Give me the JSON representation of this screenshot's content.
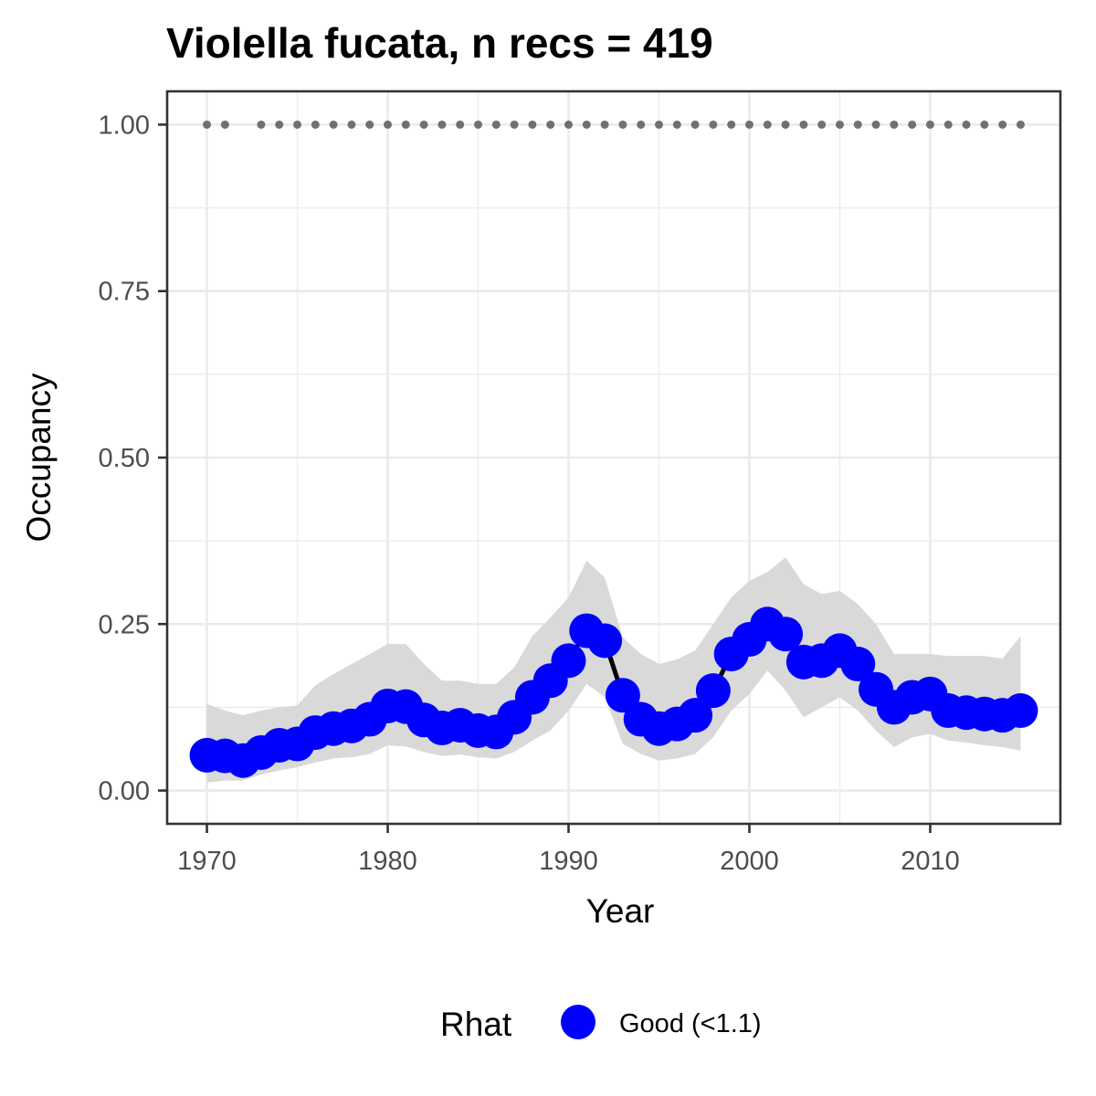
{
  "chart_data": {
    "type": "line",
    "title": "Violella fucata, n recs = 419",
    "xlabel": "Year",
    "ylabel": "Occupancy",
    "xlim": [
      1967.8,
      2017.2
    ],
    "ylim": [
      -0.05,
      1.05
    ],
    "x_ticks": [
      1970,
      1980,
      1990,
      2000,
      2010
    ],
    "x_tick_labels": [
      "1970",
      "1980",
      "1990",
      "2000",
      "2010"
    ],
    "y_ticks": [
      0,
      0.25,
      0.5,
      0.75,
      1.0
    ],
    "y_tick_labels": [
      "0.00",
      "0.25",
      "0.50",
      "0.75",
      "1.00"
    ],
    "grid": true,
    "colors": {
      "points": "#0000ff",
      "line": "#000000",
      "ribbon": "#d9d9d9",
      "record_dots": "#707070",
      "grid": "#ebebeb",
      "panel_border": "#333333"
    },
    "years": [
      1970,
      1971,
      1972,
      1973,
      1974,
      1975,
      1976,
      1977,
      1978,
      1979,
      1980,
      1981,
      1982,
      1983,
      1984,
      1985,
      1986,
      1987,
      1988,
      1989,
      1990,
      1991,
      1992,
      1993,
      1994,
      1995,
      1996,
      1997,
      1998,
      1999,
      2000,
      2001,
      2002,
      2003,
      2004,
      2005,
      2006,
      2007,
      2008,
      2009,
      2010,
      2011,
      2012,
      2013,
      2014,
      2015
    ],
    "occupancy": [
      0.053,
      0.052,
      0.045,
      0.057,
      0.068,
      0.07,
      0.087,
      0.093,
      0.097,
      0.107,
      0.127,
      0.126,
      0.106,
      0.094,
      0.098,
      0.09,
      0.088,
      0.11,
      0.14,
      0.165,
      0.195,
      0.24,
      0.225,
      0.143,
      0.107,
      0.093,
      0.1,
      0.113,
      0.15,
      0.205,
      0.227,
      0.25,
      0.235,
      0.193,
      0.195,
      0.21,
      0.19,
      0.152,
      0.125,
      0.14,
      0.145,
      0.12,
      0.117,
      0.115,
      0.113,
      0.12
    ],
    "lower": [
      0.012,
      0.015,
      0.015,
      0.024,
      0.03,
      0.035,
      0.042,
      0.048,
      0.05,
      0.055,
      0.068,
      0.066,
      0.058,
      0.052,
      0.054,
      0.05,
      0.048,
      0.058,
      0.075,
      0.09,
      0.12,
      0.16,
      0.14,
      0.07,
      0.055,
      0.045,
      0.048,
      0.055,
      0.08,
      0.12,
      0.145,
      0.18,
      0.15,
      0.11,
      0.125,
      0.14,
      0.12,
      0.09,
      0.065,
      0.08,
      0.085,
      0.075,
      0.072,
      0.068,
      0.065,
      0.06
    ],
    "upper": [
      0.13,
      0.12,
      0.113,
      0.12,
      0.125,
      0.128,
      0.158,
      0.175,
      0.19,
      0.205,
      0.22,
      0.22,
      0.19,
      0.165,
      0.165,
      0.16,
      0.16,
      0.185,
      0.232,
      0.26,
      0.29,
      0.345,
      0.32,
      0.23,
      0.205,
      0.19,
      0.197,
      0.21,
      0.25,
      0.29,
      0.315,
      0.328,
      0.35,
      0.31,
      0.295,
      0.3,
      0.28,
      0.25,
      0.205,
      0.205,
      0.205,
      0.202,
      0.202,
      0.202,
      0.198,
      0.232
    ],
    "record_years": [
      1970,
      1971,
      1973,
      1974,
      1975,
      1976,
      1977,
      1978,
      1979,
      1980,
      1981,
      1982,
      1983,
      1984,
      1985,
      1986,
      1987,
      1988,
      1989,
      1990,
      1991,
      1992,
      1993,
      1994,
      1995,
      1996,
      1997,
      1998,
      1999,
      2000,
      2001,
      2002,
      2003,
      2004,
      2005,
      2006,
      2007,
      2008,
      2009,
      2010,
      2011,
      2012,
      2013,
      2014,
      2015
    ],
    "record_value": 1.0,
    "legend": {
      "title": "Rhat",
      "entries": [
        "Good (<1.1)"
      ],
      "position": "bottom"
    }
  }
}
